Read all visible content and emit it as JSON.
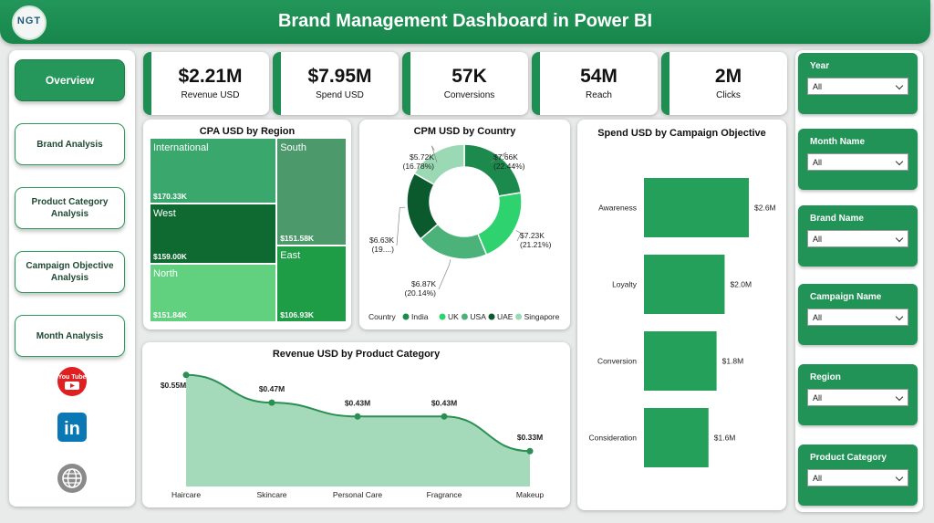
{
  "header": {
    "title": "Brand Management Dashboard in Power BI",
    "logo_text": "NGT"
  },
  "nav": {
    "items": [
      {
        "label": "Overview"
      },
      {
        "label": "Brand Analysis"
      },
      {
        "label": "Product Category Analysis"
      },
      {
        "label": "Campaign Objective Analysis"
      },
      {
        "label": "Month Analysis"
      }
    ],
    "social": [
      "youtube-icon",
      "linkedin-icon",
      "globe-icon"
    ],
    "youtube_text": "You Tube",
    "linkedin_text": "in"
  },
  "kpis": [
    {
      "value": "$2.21M",
      "label": "Revenue USD"
    },
    {
      "value": "$7.95M",
      "label": "Spend USD"
    },
    {
      "value": "57K",
      "label": "Conversions"
    },
    {
      "value": "54M",
      "label": "Reach"
    },
    {
      "value": "2M",
      "label": "Clicks"
    }
  ],
  "filters": [
    {
      "label": "Year",
      "value": "All"
    },
    {
      "label": "Month Name",
      "value": "All"
    },
    {
      "label": "Brand Name",
      "value": "All"
    },
    {
      "label": "Campaign Name",
      "value": "All"
    },
    {
      "label": "Region",
      "value": "All"
    },
    {
      "label": "Product Category",
      "value": "All"
    }
  ],
  "colors": {
    "accent": "#21935a",
    "dark": "#0d5e2f",
    "mid": "#2a9e5c",
    "light": "#5dce82",
    "pale": "#a6dcbd"
  },
  "chart_data": [
    {
      "type": "treemap",
      "title": "CPA USD by Region",
      "items": [
        {
          "name": "International",
          "value": 170.33,
          "label": "$170.33K",
          "color": "#3aa76d"
        },
        {
          "name": "West",
          "value": 159.0,
          "label": "$159.00K",
          "color": "#0f6a32"
        },
        {
          "name": "North",
          "value": 151.84,
          "label": "$151.84K",
          "color": "#61d07f"
        },
        {
          "name": "South",
          "value": 151.58,
          "label": "$151.58K",
          "color": "#4c9a6b"
        },
        {
          "name": "East",
          "value": 106.93,
          "label": "$106.93K",
          "color": "#1f9c46"
        }
      ]
    },
    {
      "type": "pie",
      "title": "CPM USD by Country",
      "legend_title": "Country",
      "slices": [
        {
          "name": "India",
          "value": 7.66,
          "value_label": "$7.66K",
          "pct_label": "(22.44%)",
          "color": "#1c8a4d"
        },
        {
          "name": "UK",
          "value": 7.23,
          "value_label": "$7.23K",
          "pct_label": "(21.21%)",
          "color": "#2ed26f"
        },
        {
          "name": "USA",
          "value": 6.87,
          "value_label": "$6.87K",
          "pct_label": "(20.14%)",
          "color": "#4bb37a"
        },
        {
          "name": "UAE",
          "value": 6.63,
          "value_label": "$6.63K",
          "pct_label": "(19....)",
          "color": "#0b5a2d"
        },
        {
          "name": "Singapore",
          "value": 5.72,
          "value_label": "$5.72K",
          "pct_label": "(16.78%)",
          "color": "#9ad9b4"
        }
      ]
    },
    {
      "type": "bar",
      "title": "Spend USD by Campaign Objective",
      "categories": [
        "Awareness",
        "Loyalty",
        "Conversion",
        "Consideration"
      ],
      "values": [
        2.6,
        2.0,
        1.8,
        1.6
      ],
      "value_labels": [
        "$2.6M",
        "$2.0M",
        "$1.8M",
        "$1.6M"
      ],
      "xlim": [
        0,
        2.6
      ]
    },
    {
      "type": "area",
      "title": "Revenue USD by Product Category",
      "categories": [
        "Haircare",
        "Skincare",
        "Personal Care",
        "Fragrance",
        "Makeup"
      ],
      "values": [
        0.55,
        0.47,
        0.43,
        0.43,
        0.33
      ],
      "value_labels": [
        "$0.55M",
        "$0.47M",
        "$0.43M",
        "$0.43M",
        "$0.33M"
      ],
      "ylim": [
        0.27,
        0.56
      ]
    }
  ]
}
